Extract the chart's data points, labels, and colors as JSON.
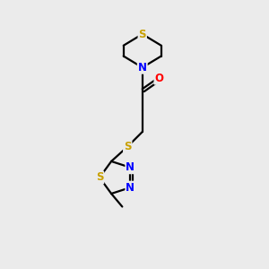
{
  "background_color": "#ebebeb",
  "bond_color": "#000000",
  "atom_colors": {
    "S": "#c8a000",
    "N": "#0000ff",
    "O": "#ff0000",
    "C": "#000000"
  },
  "figsize": [
    3.0,
    3.0
  ],
  "dpi": 100,
  "lw": 1.6,
  "fontsize": 8.5
}
